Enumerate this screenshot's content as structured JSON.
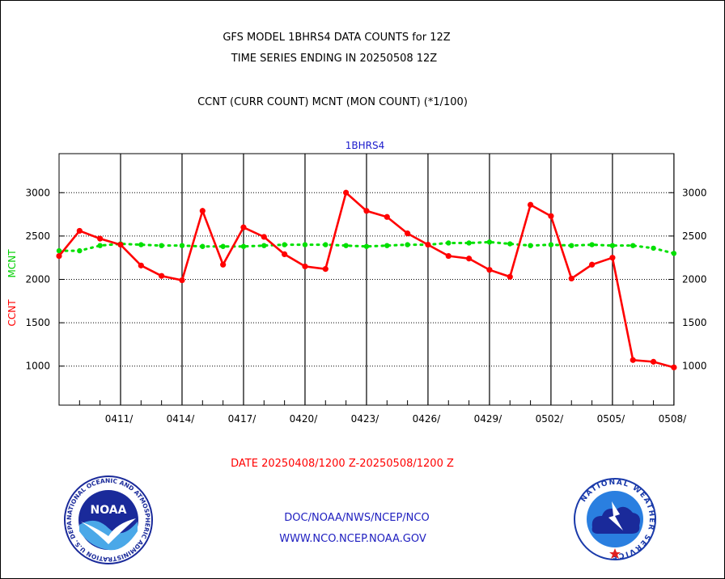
{
  "header": {
    "line1": "GFS MODEL 1BHRS4 DATA COUNTS for 12Z",
    "line2": "TIME SERIES ENDING IN 20250508 12Z",
    "line3": "CCNT (CURR COUNT) MCNT (MON COUNT) (*1/100)"
  },
  "chart_data": {
    "type": "line",
    "title": "1BHRS4",
    "ylabel_ccnt": "CCNT",
    "ylabel_mcnt": "MCNT",
    "xlabel": "DATE 20250408/1200 Z-20250508/1200 Z",
    "ylim": [
      550,
      3450
    ],
    "xlim": [
      "0408",
      "0508"
    ],
    "yticks": [
      1000,
      1500,
      2000,
      2500,
      3000
    ],
    "xticks": [
      "0411/",
      "0414/",
      "0417/",
      "0420/",
      "0423/",
      "0426/",
      "0429/",
      "0502/",
      "0505/",
      "0508/"
    ],
    "grid": true,
    "series": [
      {
        "name": "CCNT",
        "color": "#ff0000",
        "x": [
          "0408",
          "0409",
          "0410",
          "0411",
          "0412",
          "0413",
          "0414",
          "0415",
          "0416",
          "0417",
          "0418",
          "0419",
          "0420",
          "0421",
          "0422",
          "0423",
          "0424",
          "0425",
          "0426",
          "0427",
          "0428",
          "0429",
          "0430",
          "0501",
          "0502",
          "0503",
          "0504",
          "0505",
          "0506",
          "0507",
          "0508"
        ],
        "values": [
          2270,
          2560,
          2470,
          2400,
          2160,
          2040,
          1990,
          2790,
          2170,
          2600,
          2490,
          2290,
          2150,
          2120,
          3000,
          2790,
          2720,
          2530,
          2400,
          2270,
          2240,
          2110,
          2030,
          2860,
          2730,
          2010,
          2170,
          2250,
          1070,
          1050,
          985
        ]
      },
      {
        "name": "MCNT",
        "color": "#00e000",
        "x": [
          "0408",
          "0409",
          "0410",
          "0411",
          "0412",
          "0413",
          "0414",
          "0415",
          "0416",
          "0417",
          "0418",
          "0419",
          "0420",
          "0421",
          "0422",
          "0423",
          "0424",
          "0425",
          "0426",
          "0427",
          "0428",
          "0429",
          "0430",
          "0501",
          "0502",
          "0503",
          "0504",
          "0505",
          "0506",
          "0507",
          "0508"
        ],
        "values": [
          2330,
          2330,
          2390,
          2410,
          2400,
          2390,
          2390,
          2380,
          2380,
          2380,
          2390,
          2400,
          2400,
          2400,
          2390,
          2380,
          2390,
          2400,
          2400,
          2420,
          2420,
          2430,
          2410,
          2390,
          2400,
          2390,
          2400,
          2390,
          2390,
          2360,
          2300
        ]
      }
    ]
  },
  "footer": {
    "org_path": "DOC/NOAA/NWS/NCEP/NCO",
    "website": "WWW.NCO.NCEP.NOAA.GOV"
  },
  "logos": {
    "noaa_text": "NOAA",
    "noaa_ring": "NATIONAL OCEANIC AND ATMOSPHERIC ADMINISTRATION  U.S. DEPARTMENT OF COMMERCE",
    "nws_ring": "NATIONAL WEATHER SERVICE"
  },
  "colors": {
    "title_text": "#000000",
    "panel_title": "#1a1acc",
    "date_label": "#ff0000",
    "footer_text": "#2020c0",
    "ccnt": "#ff0000",
    "mcnt": "#00e000"
  }
}
